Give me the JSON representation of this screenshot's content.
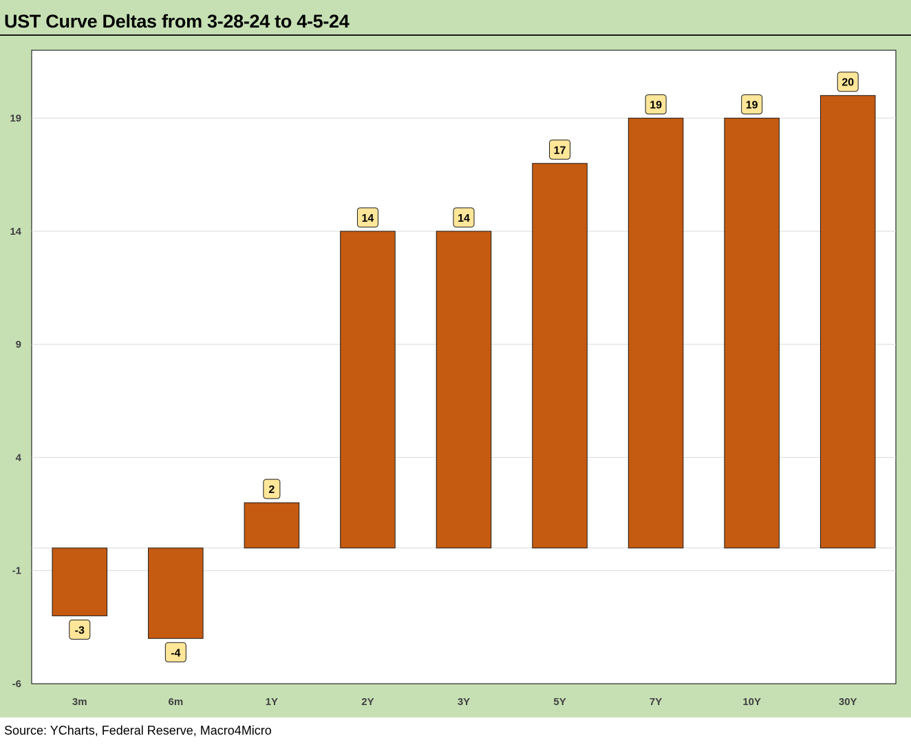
{
  "page": {
    "title": "UST Curve Deltas from 3-28-24 to 4-5-24",
    "source": "Source: YCharts, Federal Reserve, Macro4Micro"
  },
  "colors": {
    "background": "#c6e0b4",
    "plot": "#ffffff",
    "bar": "#c55a11",
    "label_fill": "#ffe699",
    "grid": "#d9d9d9"
  },
  "chart_data": {
    "type": "bar",
    "title": "UST Curve Deltas from 3-28-24 to 4-5-24",
    "xlabel": "",
    "ylabel": "",
    "categories": [
      "3m",
      "6m",
      "1Y",
      "2Y",
      "3Y",
      "5Y",
      "7Y",
      "10Y",
      "30Y"
    ],
    "values": [
      -3,
      -4,
      2,
      14,
      14,
      17,
      19,
      19,
      20
    ],
    "data_labels": [
      "-3",
      "-4",
      "2",
      "14",
      "14",
      "17",
      "19",
      "19",
      "20"
    ],
    "ylim": [
      -6,
      22
    ],
    "yticks": [
      -6,
      -1,
      4,
      9,
      14,
      19
    ],
    "ytick_labels": [
      "-6",
      "-1",
      "4",
      "9",
      "14",
      "19"
    ],
    "grid": true,
    "legend": "none"
  }
}
